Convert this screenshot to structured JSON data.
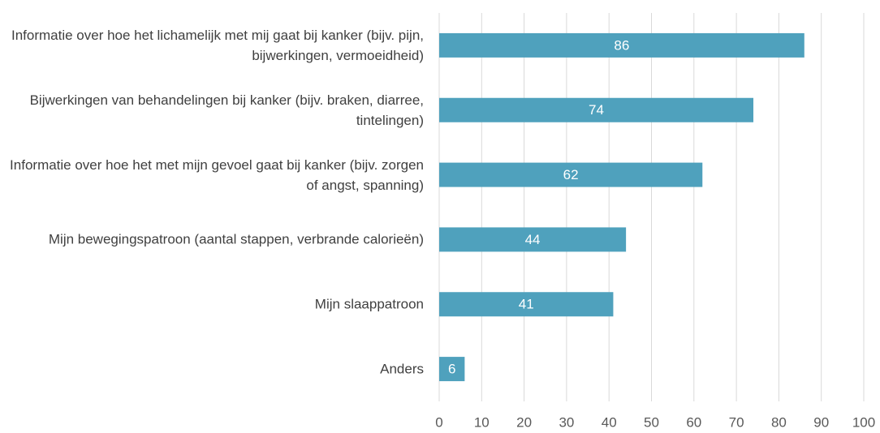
{
  "chart_data": {
    "type": "hbar",
    "categories": [
      "Informatie over hoe het lichamelijk met mij gaat bij kanker (bijv. pijn, bijwerkingen, vermoeidheid)",
      "Bijwerkingen van behandelingen bij kanker (bijv. braken, diarree, tintelingen)",
      "Informatie over hoe het met mijn gevoel gaat bij kanker (bijv. zorgen of angst, spanning)",
      "Mijn bewegingspatroon (aantal stappen, verbrande calorieën)",
      "Mijn slaappatroon",
      "Anders"
    ],
    "values": [
      86,
      74,
      62,
      44,
      41,
      6
    ],
    "color": "#4fa1bd",
    "xlim": [
      0,
      100
    ],
    "xticks": [
      0,
      10,
      20,
      30,
      40,
      50,
      60,
      70,
      80,
      90,
      100
    ],
    "grid": true
  }
}
